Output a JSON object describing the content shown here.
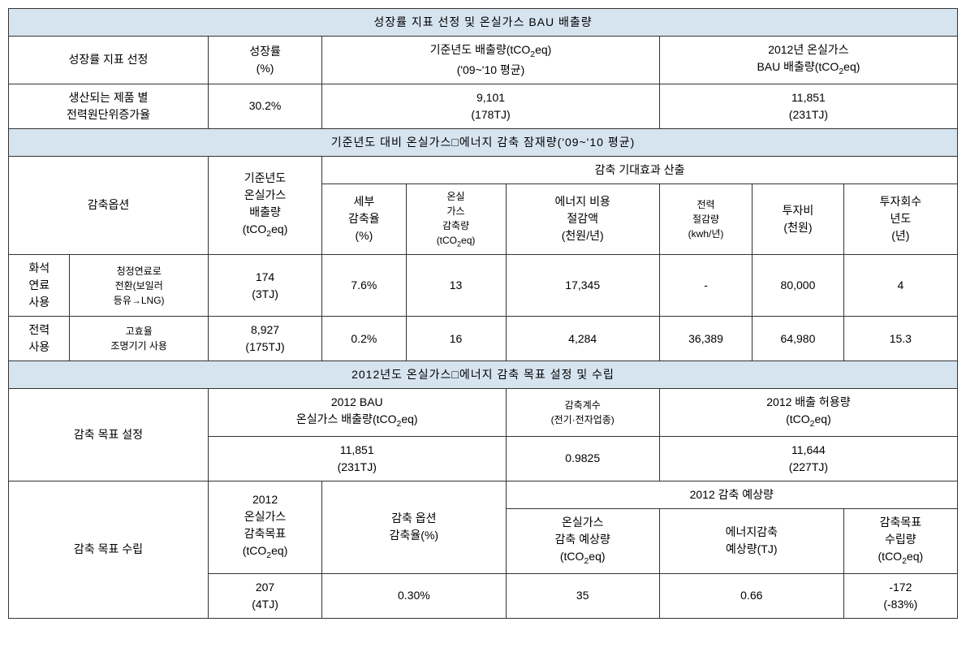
{
  "section1": {
    "title": "성장률 지표 선정 및 온실가스 BAU 배출량",
    "headers": {
      "indicator": "성장률 지표 선정",
      "growth_rate": "성장률\n(%)",
      "baseline_emission": "기준년도 배출량(tCO₂eq)\n('09~'10 평균)",
      "bau_2012": "2012년 온실가스\nBAU 배출량(tCO₂eq)"
    },
    "row": {
      "indicator": "생산되는 제품 별\n전력원단위증가율",
      "growth_rate": "30.2%",
      "baseline_emission": "9,101\n(178TJ)",
      "bau_2012": "11,851\n(231TJ)"
    }
  },
  "section2": {
    "title": "기준년도 대비 온실가스□에너지 감축 잠재량('09~'10 평균)",
    "headers": {
      "option": "감축옵션",
      "baseline": "기준년도\n온실가스\n배출량\n(tCO₂eq)",
      "effect_title": "감축 기대효과 산출",
      "reduction_rate": "세부\n감축율\n(%)",
      "ghg_reduction": "온실\n가스\n감축량\n(tCO₂eq)",
      "energy_saving": "에너지 비용\n절감액\n(천원/년)",
      "power_saving": "전력\n절감량\n(kwh/년)",
      "investment": "투자비\n(천원)",
      "payback": "투자회수\n년도\n(년)"
    },
    "rows": [
      {
        "cat1": "화석\n연료\n사용",
        "cat2": "청정연료로\n전환(보일러\n등유→LNG)",
        "baseline": "174\n(3TJ)",
        "reduction_rate": "7.6%",
        "ghg_reduction": "13",
        "energy_saving": "17,345",
        "power_saving": "-",
        "investment": "80,000",
        "payback": "4"
      },
      {
        "cat1": "전력\n사용",
        "cat2": "고효율\n조명기기 사용",
        "baseline": "8,927\n(175TJ)",
        "reduction_rate": "0.2%",
        "ghg_reduction": "16",
        "energy_saving": "4,284",
        "power_saving": "36,389",
        "investment": "64,980",
        "payback": "15.3"
      }
    ]
  },
  "section3": {
    "title": "2012년도 온실가스□에너지 감축 목표 설정 및 수립",
    "target_setting": {
      "label": "감축 목표 설정",
      "bau_header": "2012 BAU\n온실가스 배출량(tCO₂eq)",
      "coef_header": "감축계수\n(전기·전자업종)",
      "allowance_header": "2012 배출 허용량\n(tCO₂eq)",
      "bau_value": "11,851\n(231TJ)",
      "coef_value": "0.9825",
      "allowance_value": "11,644\n(227TJ)"
    },
    "target_establish": {
      "label": "감축 목표 수립",
      "ghg_target_header": "2012\n온실가스\n감축목표\n(tCO₂eq)",
      "option_rate_header": "감축 옵션\n감축율(%)",
      "expected_title": "2012 감축 예상량",
      "ghg_expected_header": "온실가스\n감축 예상량\n(tCO₂eq)",
      "energy_expected_header": "에너지감축\n예상량(TJ)",
      "target_amount_header": "감축목표\n수립량\n(tCO₂eq)",
      "ghg_target_value": "207\n(4TJ)",
      "option_rate_value": "0.30%",
      "ghg_expected_value": "35",
      "energy_expected_value": "0.66",
      "target_amount_value": "-172\n(-83%)"
    }
  },
  "colors": {
    "header_bg": "#d6e4f0",
    "border": "#333333",
    "bg": "#ffffff"
  }
}
